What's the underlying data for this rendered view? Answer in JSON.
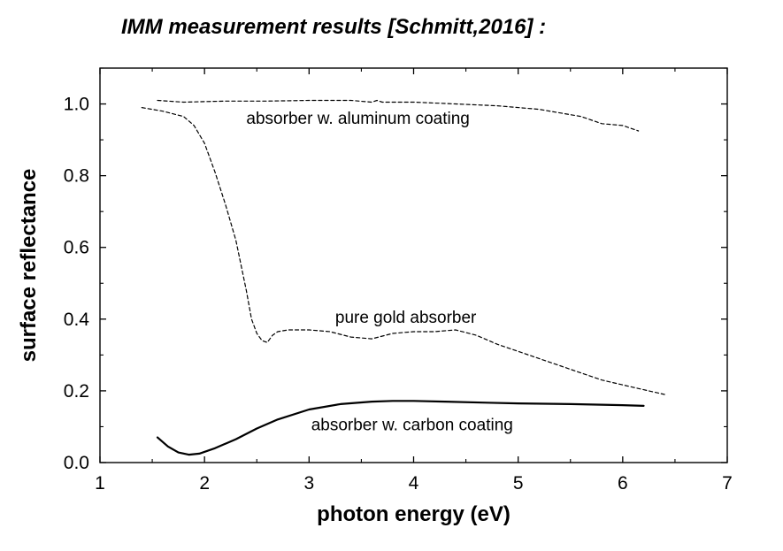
{
  "chart_data": {
    "type": "line",
    "title": "IMM measurement  results [Schmitt,2016] :",
    "xlabel": "photon energy (eV)",
    "ylabel": "surface reflectance",
    "xlim": [
      1,
      7
    ],
    "ylim": [
      0,
      1.1
    ],
    "xticks": [
      {
        "value": 1,
        "label": "1"
      },
      {
        "value": 2,
        "label": "2"
      },
      {
        "value": 3,
        "label": "3"
      },
      {
        "value": 4,
        "label": "4"
      },
      {
        "value": 5,
        "label": "5"
      },
      {
        "value": 6,
        "label": "6"
      },
      {
        "value": 7,
        "label": "7"
      }
    ],
    "yticks": [
      {
        "value": 0.0,
        "label": "0.0"
      },
      {
        "value": 0.2,
        "label": "0.2"
      },
      {
        "value": 0.4,
        "label": "0.4"
      },
      {
        "value": 0.6,
        "label": "0.6"
      },
      {
        "value": 0.8,
        "label": "0.8"
      },
      {
        "value": 1.0,
        "label": "1.0"
      }
    ],
    "grid": false,
    "legend": "none",
    "series": [
      {
        "label": "absorber w. aluminum coating",
        "style": "dashed",
        "color": "#000000",
        "x": [
          1.55,
          1.8,
          2.2,
          2.6,
          3.0,
          3.4,
          3.6,
          3.65,
          3.7,
          4.0,
          4.4,
          4.8,
          5.2,
          5.6,
          5.8,
          6.0,
          6.15
        ],
        "y": [
          1.01,
          1.005,
          1.008,
          1.008,
          1.01,
          1.01,
          1.005,
          1.01,
          1.005,
          1.005,
          1.0,
          0.995,
          0.985,
          0.965,
          0.945,
          0.94,
          0.925
        ]
      },
      {
        "label": "pure gold absorber",
        "style": "dashed",
        "color": "#000000",
        "x": [
          1.4,
          1.6,
          1.8,
          1.9,
          2.0,
          2.1,
          2.2,
          2.3,
          2.35,
          2.4,
          2.45,
          2.5,
          2.55,
          2.6,
          2.65,
          2.7,
          2.8,
          3.0,
          3.2,
          3.4,
          3.6,
          3.8,
          4.0,
          4.2,
          4.4,
          4.6,
          4.8,
          5.0,
          5.4,
          5.8,
          6.1,
          6.4
        ],
        "y": [
          0.99,
          0.98,
          0.965,
          0.94,
          0.89,
          0.81,
          0.72,
          0.62,
          0.55,
          0.48,
          0.4,
          0.36,
          0.34,
          0.335,
          0.355,
          0.365,
          0.37,
          0.37,
          0.365,
          0.35,
          0.345,
          0.36,
          0.365,
          0.365,
          0.37,
          0.355,
          0.33,
          0.31,
          0.27,
          0.23,
          0.21,
          0.19
        ]
      },
      {
        "label": "absorber w. carbon coating",
        "style": "solid",
        "color": "#000000",
        "x": [
          1.55,
          1.65,
          1.75,
          1.85,
          1.95,
          2.1,
          2.3,
          2.5,
          2.7,
          3.0,
          3.3,
          3.6,
          3.8,
          4.0,
          4.3,
          4.7,
          5.0,
          5.5,
          6.0,
          6.2
        ],
        "y": [
          0.07,
          0.045,
          0.028,
          0.022,
          0.025,
          0.04,
          0.065,
          0.095,
          0.12,
          0.148,
          0.163,
          0.17,
          0.172,
          0.172,
          0.17,
          0.167,
          0.165,
          0.163,
          0.16,
          0.158
        ]
      }
    ],
    "annotations": [
      {
        "text": "absorber w. aluminum coating",
        "x": 2.4,
        "y": 0.945
      },
      {
        "text": "pure gold absorber",
        "x": 3.25,
        "y": 0.39
      },
      {
        "text": "absorber w. carbon coating",
        "x": 3.02,
        "y": 0.09
      }
    ]
  }
}
